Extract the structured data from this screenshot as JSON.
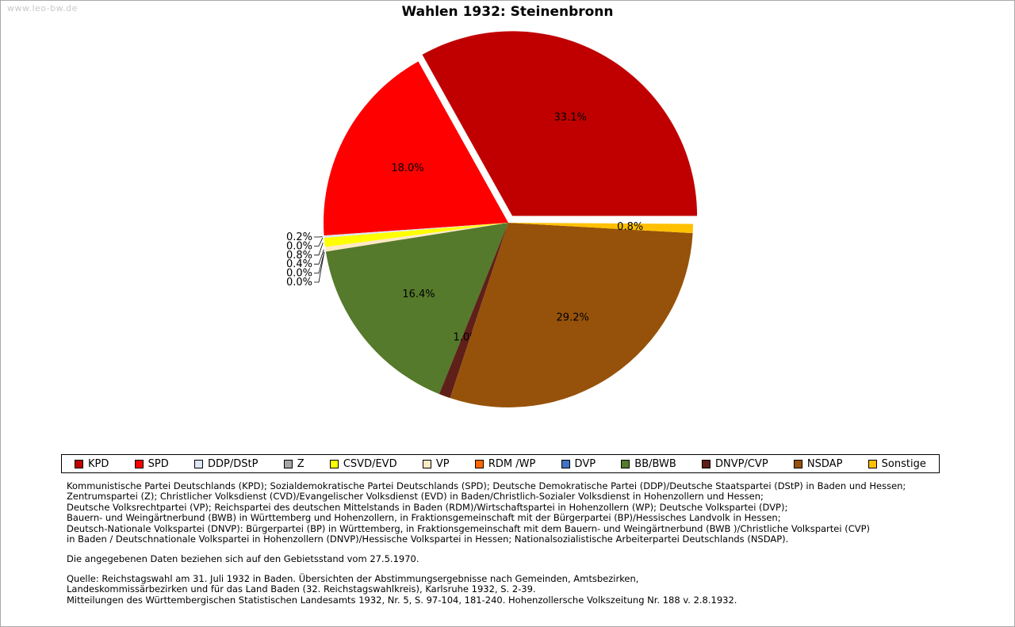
{
  "watermark": "www.leo-bw.de",
  "chart_data": {
    "type": "pie",
    "title": "Wahlen 1932: Steinenbronn",
    "unit": "%",
    "start_angle_deg": 0,
    "direction": "counterclockwise",
    "legend_position": "bottom",
    "series": [
      {
        "name": "KPD",
        "value": 33.1,
        "color": "#c00000",
        "explode": true,
        "label_placement": "inside"
      },
      {
        "name": "SPD",
        "value": 18.0,
        "color": "#fe0000",
        "explode": false,
        "label_placement": "inside"
      },
      {
        "name": "DDP/DStP",
        "value": 0.2,
        "color": "#dde6f4",
        "explode": false,
        "label_placement": "left"
      },
      {
        "name": "Z",
        "value": 0.0,
        "color": "#a5a5a5",
        "explode": false,
        "label_placement": "left"
      },
      {
        "name": "CSVD/EVD",
        "value": 0.8,
        "color": "#ffff00",
        "explode": false,
        "label_placement": "left"
      },
      {
        "name": "VP",
        "value": 0.4,
        "color": "#ffe9c4",
        "explode": false,
        "label_placement": "left"
      },
      {
        "name": "RDM /WP",
        "value": 0.0,
        "color": "#ff6600",
        "explode": false,
        "label_placement": "left"
      },
      {
        "name": "DVP",
        "value": 0.0,
        "color": "#4472c4",
        "explode": false,
        "label_placement": "left"
      },
      {
        "name": "BB/BWB",
        "value": 16.4,
        "color": "#557a2b",
        "explode": false,
        "label_placement": "inside"
      },
      {
        "name": "DNVP/CVP",
        "value": 1.0,
        "color": "#5f2019",
        "explode": false,
        "label_placement": "inside-small"
      },
      {
        "name": "NSDAP",
        "value": 29.2,
        "color": "#96520a",
        "explode": false,
        "label_placement": "inside"
      },
      {
        "name": "Sonstige",
        "value": 0.8,
        "color": "#ffc000",
        "explode": false,
        "label_placement": "inside-small"
      }
    ]
  },
  "footnotes": {
    "party_lines": [
      "Kommunistische Partei Deutschlands (KPD); Sozialdemokratische Partei Deutschlands (SPD); Deutsche Demokratische Partei (DDP)/Deutsche Staatspartei (DStP) in Baden und Hessen;",
      "Zentrumspartei (Z); Christlicher Volksdienst (CVD)/Evangelischer Volksdienst (EVD) in Baden/Christlich-Sozialer Volksdienst in Hohenzollern und Hessen;",
      "Deutsche Volksrechtpartei (VP); Reichspartei des deutschen Mittelstands in Baden (RDM)/Wirtschaftspartei in Hohenzollern (WP); Deutsche Volkspartei (DVP);",
      "Bauern- und Weingärtnerbund (BWB) in Württemberg und Hohenzollern, in Fraktionsgemeinschaft mit der Bürgerpartei (BP)/Hessisches Landvolk in Hessen;",
      "Deutsch-Nationale Volkspartei (DNVP): Bürgerpartei (BP) in Württemberg, in Fraktionsgemeinschaft mit dem Bauern- und Weingärtnerbund (BWB )/Christliche Volkspartei (CVP)",
      "in Baden / Deutschnationale Volkspartei in Hohenzollern (DNVP)/Hessische Volkspartei in Hessen; Nationalsozialistische Arbeiterpartei Deutschlands (NSDAP)."
    ],
    "gebietsstand": "Die angegebenen Daten beziehen sich auf den Gebietsstand vom 27.5.1970.",
    "quelle_lines": [
      "Quelle: Reichstagswahl am 31. Juli 1932 in Baden. Übersichten der Abstimmungsergebnisse nach Gemeinden, Amtsbezirken,",
      "Landeskommissärbezirken und für das Land Baden (32. Reichstagswahlkreis), Karlsruhe 1932, S. 2-39.",
      "Mitteilungen des Württembergischen Statistischen Landesamts 1932, Nr. 5, S. 97-104, 181-240. Hohenzollersche Volkszeitung Nr. 188 v. 2.8.1932."
    ]
  }
}
